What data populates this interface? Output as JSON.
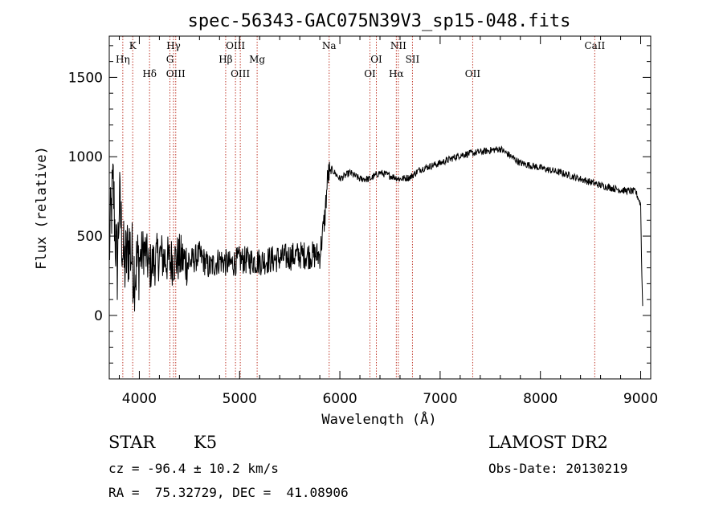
{
  "chart_data": {
    "type": "line",
    "title": "spec-56343-GAC075N39V3_sp15-048.fits",
    "xlabel": "Wavelength (Å)",
    "ylabel": "Flux (relative)",
    "xlim": [
      3700,
      9100
    ],
    "ylim": [
      -400,
      1760
    ],
    "xticks": [
      4000,
      5000,
      6000,
      7000,
      8000,
      9000
    ],
    "yticks": [
      0,
      500,
      1000,
      1500
    ],
    "line_color": "#000000",
    "marker_color": "#c0392b",
    "spectral_lines": [
      {
        "label": "Hη",
        "x": 3835,
        "row": 1
      },
      {
        "label": "K",
        "x": 3934,
        "row": 0
      },
      {
        "label": "Hδ",
        "x": 4102,
        "row": 2
      },
      {
        "label": "Hγ",
        "x": 4341,
        "row": 0
      },
      {
        "label": "G",
        "x": 4305,
        "row": 1
      },
      {
        "label": "OIII",
        "x": 4363,
        "row": 2
      },
      {
        "label": "OIII",
        "x": 4959,
        "row": 0
      },
      {
        "label": "Hβ",
        "x": 4861,
        "row": 1
      },
      {
        "label": "OIII",
        "x": 5007,
        "row": 2
      },
      {
        "label": "Mg",
        "x": 5175,
        "row": 1
      },
      {
        "label": "Na",
        "x": 5893,
        "row": 0
      },
      {
        "label": "OI",
        "x": 6364,
        "row": 1
      },
      {
        "label": "OI",
        "x": 6300,
        "row": 2
      },
      {
        "label": "NII",
        "x": 6583,
        "row": 0
      },
      {
        "label": "Hα",
        "x": 6563,
        "row": 2
      },
      {
        "label": "SII",
        "x": 6724,
        "row": 1
      },
      {
        "label": "OII",
        "x": 7325,
        "row": 2
      },
      {
        "label": "CaII",
        "x": 8542,
        "row": 0
      }
    ],
    "spectrum_anchors": [
      [
        3700,
        400
      ],
      [
        3720,
        650
      ],
      [
        3740,
        820
      ],
      [
        3760,
        500
      ],
      [
        3780,
        300
      ],
      [
        3800,
        720
      ],
      [
        3850,
        300
      ],
      [
        3900,
        450
      ],
      [
        3950,
        280
      ],
      [
        4000,
        350
      ],
      [
        4050,
        420
      ],
      [
        4100,
        300
      ],
      [
        4200,
        380
      ],
      [
        4300,
        340
      ],
      [
        4400,
        360
      ],
      [
        4500,
        330
      ],
      [
        4600,
        380
      ],
      [
        4700,
        300
      ],
      [
        4800,
        350
      ],
      [
        4900,
        320
      ],
      [
        5000,
        350
      ],
      [
        5200,
        340
      ],
      [
        5400,
        360
      ],
      [
        5600,
        380
      ],
      [
        5800,
        380
      ],
      [
        5850,
        620
      ],
      [
        5880,
        880
      ],
      [
        5920,
        920
      ],
      [
        6000,
        860
      ],
      [
        6100,
        900
      ],
      [
        6200,
        860
      ],
      [
        6300,
        860
      ],
      [
        6400,
        900
      ],
      [
        6500,
        880
      ],
      [
        6600,
        860
      ],
      [
        6700,
        870
      ],
      [
        6800,
        920
      ],
      [
        6900,
        940
      ],
      [
        7000,
        960
      ],
      [
        7200,
        1010
      ],
      [
        7400,
        1030
      ],
      [
        7600,
        1050
      ],
      [
        7800,
        960
      ],
      [
        8000,
        930
      ],
      [
        8200,
        900
      ],
      [
        8400,
        860
      ],
      [
        8600,
        820
      ],
      [
        8800,
        790
      ],
      [
        8950,
        780
      ],
      [
        9000,
        700
      ],
      [
        9010,
        300
      ],
      [
        9020,
        60
      ]
    ]
  },
  "info": {
    "object_class": "STAR",
    "subclass": "K5",
    "redshift": "cz = -96.4 ± 10.2 km/s",
    "coordinates": "RA =  75.32729, DEC =  41.08906",
    "survey": "LAMOST DR2",
    "obs_date": "Obs-Date: 20130219"
  }
}
